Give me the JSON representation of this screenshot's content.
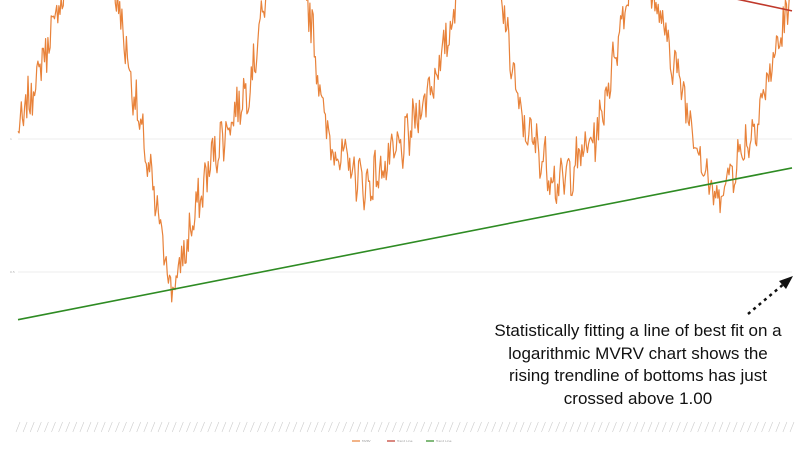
{
  "chart_data": {
    "type": "line",
    "title": "",
    "xlabel": "",
    "ylabel": "",
    "yscale": "log",
    "y_ticks": [
      "1",
      "0.5"
    ],
    "grid": "horizontal",
    "legend_position": "bottom",
    "legend": [
      "MVRV",
      "Trend Line",
      "Trend Line"
    ],
    "series": [
      {
        "name": "MVRV",
        "color": "#e8823a",
        "x_index": [
          0,
          5,
          10,
          15,
          20,
          25,
          30,
          35,
          40,
          45,
          50,
          55,
          60,
          65,
          70,
          75,
          80,
          85,
          90,
          95,
          100
        ],
        "values": [
          1.02,
          1.9,
          4.0,
          1.25,
          0.45,
          0.9,
          1.35,
          4.2,
          1.0,
          0.78,
          0.98,
          1.55,
          3.8,
          1.1,
          0.78,
          1.05,
          2.7,
          1.45,
          0.72,
          1.05,
          2.1
        ]
      },
      {
        "name": "Trend Line",
        "color": "#c0392b",
        "x_index": [
          0,
          100
        ],
        "values": [
          4.6,
          1.95
        ]
      },
      {
        "name": "Trend Line",
        "color": "#2e8b23",
        "x_index": [
          0,
          100
        ],
        "values": [
          0.39,
          0.86
        ]
      }
    ]
  },
  "annotation": {
    "text": "Statistically fitting a line of best fit on a logarithmic MVRV chart shows the rising trendline of bottoms has just crossed above 1.00"
  },
  "colors": {
    "mvrv": "#e8823a",
    "upper_trend": "#c0392b",
    "lower_trend": "#2e8b23",
    "arrow": "#111111"
  }
}
